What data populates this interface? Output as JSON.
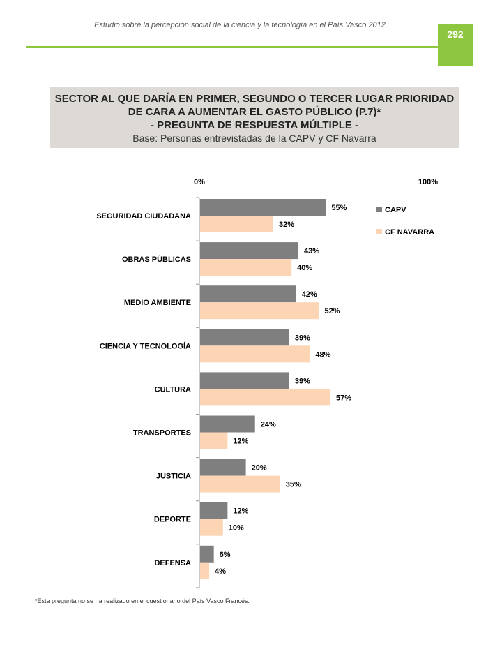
{
  "header": {
    "doc_title": "Estudio sobre la percepción social de la ciencia y la tecnología en el País Vasco 2012",
    "page_number": "292",
    "accent_color": "#8dc63f"
  },
  "title_box": {
    "line1": "SECTOR AL QUE DARÍA EN PRIMER, SEGUNDO O TERCER LUGAR PRIORIDAD",
    "line2": "DE CARA A AUMENTAR EL GASTO PÚBLICO (P.7)*",
    "line3": "- PREGUNTA DE RESPUESTA MÚLTIPLE -",
    "base": "Base: Personas entrevistadas  de la CAPV y CF Navarra"
  },
  "chart_data": {
    "type": "bar",
    "orientation": "horizontal",
    "title": "",
    "xlabel": "",
    "ylabel": "",
    "xlim": [
      0,
      100
    ],
    "axis_tick_labels": [
      "0%",
      "100%"
    ],
    "legend_position": "right",
    "categories": [
      "SEGURIDAD CIUDADANA",
      "OBRAS PÚBLICAS",
      "MEDIO AMBIENTE",
      "CIENCIA Y TECNOLOGÍA",
      "CULTURA",
      "TRANSPORTES",
      "JUSTICIA",
      "DEPORTE",
      "DEFENSA"
    ],
    "series": [
      {
        "name": "CAPV",
        "color": "#7f7f7f",
        "values": [
          55,
          43,
          42,
          39,
          39,
          24,
          20,
          12,
          6
        ],
        "labels": [
          "55%",
          "43%",
          "42%",
          "39%",
          "39%",
          "24%",
          "20%",
          "12%",
          "6%"
        ]
      },
      {
        "name": "CF NAVARRA",
        "color": "#fcd5b5",
        "values": [
          32,
          40,
          52,
          48,
          57,
          12,
          35,
          10,
          4
        ],
        "labels": [
          "32%",
          "40%",
          "52%",
          "48%",
          "57%",
          "12%",
          "35%",
          "10%",
          "4%"
        ]
      }
    ]
  },
  "footnote": "*Esta pregunta no se ha realizado en el cuestionario del País Vasco Francés."
}
